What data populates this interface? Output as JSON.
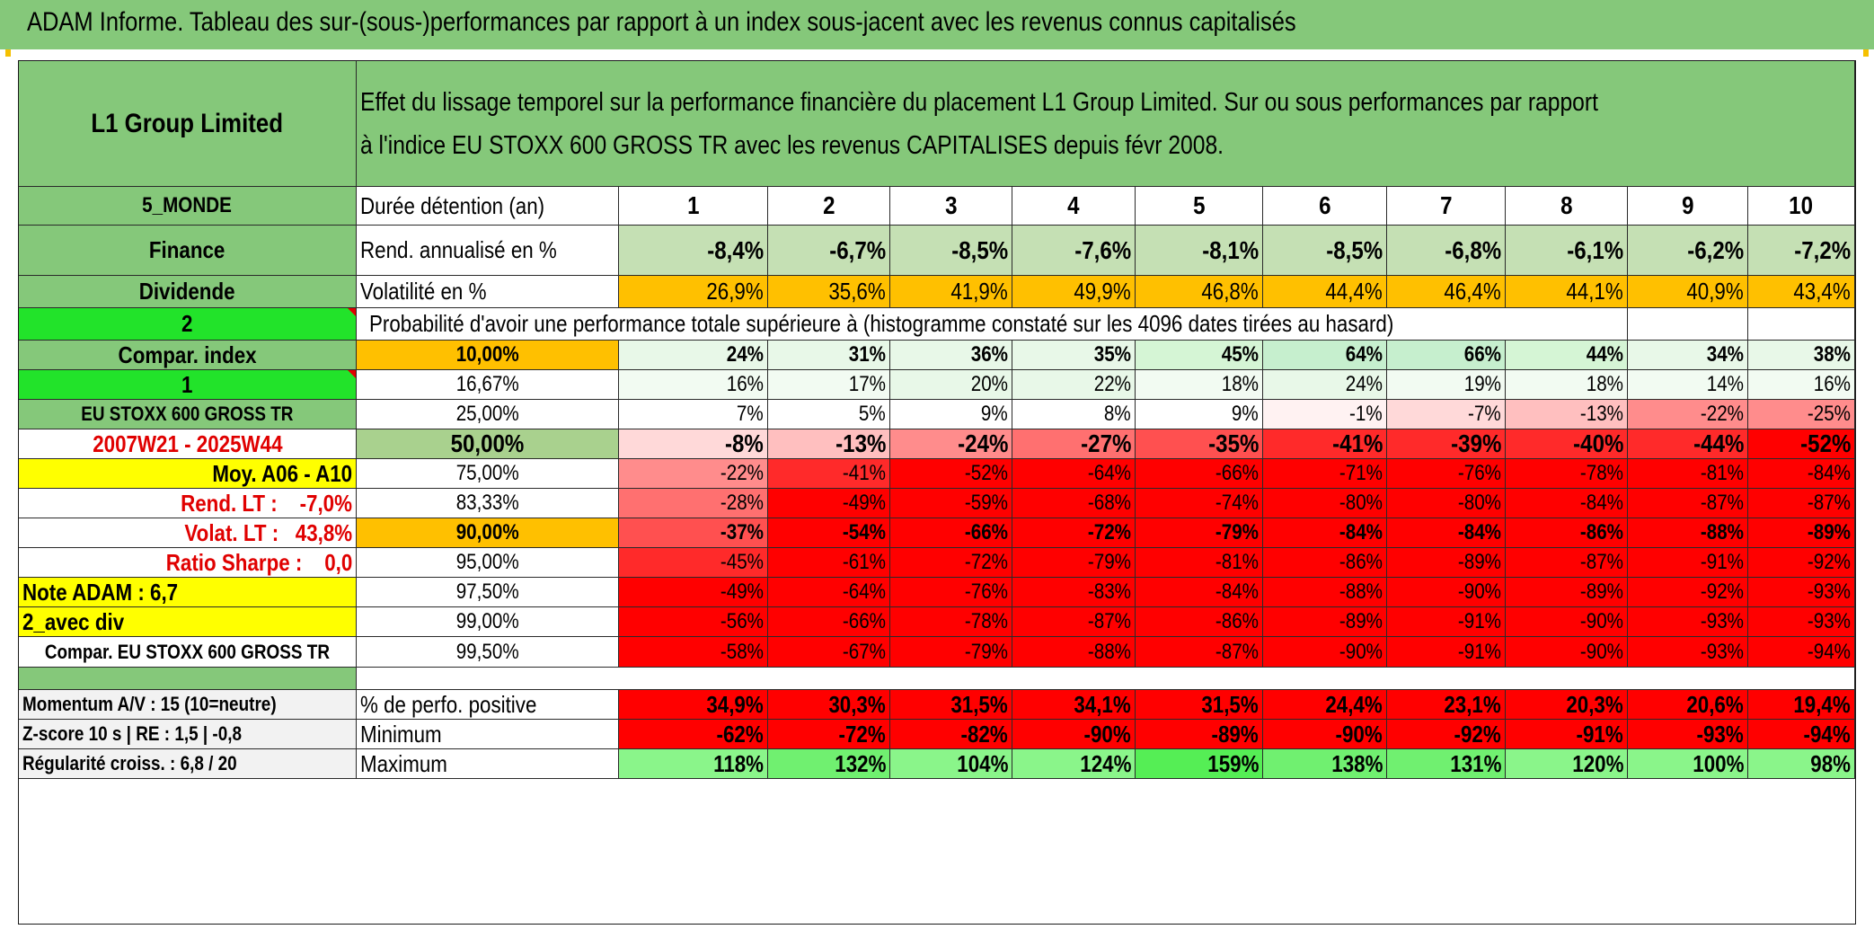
{
  "title": "ADAM Informe. Tableau des sur-(sous-)performances par rapport à un index sous-jacent avec les revenus connus capitalisés",
  "header": {
    "company": "L1 Group Limited",
    "description_line1": "Effet du lissage temporel sur la performance financière du placement L1 Group Limited. Sur ou sous performances par rapport",
    "description_line2": "à l'indice EU STOXX 600 GROSS TR avec les revenus CAPITALISES depuis févr 2008."
  },
  "left": {
    "region": "5_MONDE",
    "sector": "Finance",
    "dividend": "Dividende",
    "num2": "2",
    "compar_index": "Compar. index",
    "num1": "1",
    "index_name": "EU STOXX 600 GROSS TR",
    "period": "2007W21 - 2025W44",
    "moy": "Moy. A06 - A10",
    "rend_lt": "Rend. LT :    -7,0%",
    "volat_lt": "Volat. LT :   43,8%",
    "sharpe": "Ratio Sharpe :    0,0",
    "note": "Note ADAM : 6,7",
    "avec_div": "2_avec div",
    "compar_eu": "Compar. EU STOXX 600 GROSS TR",
    "momentum": "Momentum A/V : 15 (10=neutre)",
    "zscore": "Z-score 10 s | RE : 1,5 | -0,8",
    "regularite": "Régularité croiss. : 6,8 / 20"
  },
  "labels": {
    "duree": "Durée détention (an)",
    "rend": "Rend. annualisé en %",
    "volat": "Volatilité en %",
    "proba": "Probabilité d'avoir une performance totale supérieure à (histogramme constaté sur les 4096 dates tirées au hasard)",
    "perf_pos": "% de perfo. positive",
    "minimum": "Minimum",
    "maximum": "Maximum"
  },
  "years": [
    "1",
    "2",
    "3",
    "4",
    "5",
    "6",
    "7",
    "8",
    "9",
    "10"
  ],
  "rend": [
    "-8,4%",
    "-6,7%",
    "-8,5%",
    "-7,6%",
    "-8,1%",
    "-8,5%",
    "-6,8%",
    "-6,1%",
    "-6,2%",
    "-7,2%"
  ],
  "volat": [
    "26,9%",
    "35,6%",
    "41,9%",
    "49,9%",
    "46,8%",
    "44,4%",
    "46,4%",
    "44,1%",
    "40,9%",
    "43,4%"
  ],
  "prob_rows": [
    {
      "pct": "10,00%",
      "values": [
        "24%",
        "31%",
        "36%",
        "35%",
        "45%",
        "64%",
        "66%",
        "44%",
        "34%",
        "38%"
      ]
    },
    {
      "pct": "16,67%",
      "values": [
        "16%",
        "17%",
        "20%",
        "22%",
        "18%",
        "24%",
        "19%",
        "18%",
        "14%",
        "16%"
      ]
    },
    {
      "pct": "25,00%",
      "values": [
        "7%",
        "5%",
        "9%",
        "8%",
        "9%",
        "-1%",
        "-7%",
        "-13%",
        "-22%",
        "-25%"
      ]
    },
    {
      "pct": "50,00%",
      "values": [
        "-8%",
        "-13%",
        "-24%",
        "-27%",
        "-35%",
        "-41%",
        "-39%",
        "-40%",
        "-44%",
        "-52%"
      ]
    },
    {
      "pct": "75,00%",
      "values": [
        "-22%",
        "-41%",
        "-52%",
        "-64%",
        "-66%",
        "-71%",
        "-76%",
        "-78%",
        "-81%",
        "-84%"
      ]
    },
    {
      "pct": "83,33%",
      "values": [
        "-28%",
        "-49%",
        "-59%",
        "-68%",
        "-74%",
        "-80%",
        "-80%",
        "-84%",
        "-87%",
        "-87%"
      ]
    },
    {
      "pct": "90,00%",
      "values": [
        "-37%",
        "-54%",
        "-66%",
        "-72%",
        "-79%",
        "-84%",
        "-84%",
        "-86%",
        "-88%",
        "-89%"
      ]
    },
    {
      "pct": "95,00%",
      "values": [
        "-45%",
        "-61%",
        "-72%",
        "-79%",
        "-81%",
        "-86%",
        "-89%",
        "-87%",
        "-91%",
        "-92%"
      ]
    },
    {
      "pct": "97,50%",
      "values": [
        "-49%",
        "-64%",
        "-76%",
        "-83%",
        "-84%",
        "-88%",
        "-90%",
        "-89%",
        "-92%",
        "-93%"
      ]
    },
    {
      "pct": "99,00%",
      "values": [
        "-56%",
        "-66%",
        "-78%",
        "-87%",
        "-86%",
        "-89%",
        "-91%",
        "-90%",
        "-93%",
        "-93%"
      ]
    },
    {
      "pct": "99,50%",
      "values": [
        "-58%",
        "-67%",
        "-79%",
        "-88%",
        "-87%",
        "-90%",
        "-91%",
        "-90%",
        "-93%",
        "-94%"
      ]
    }
  ],
  "perf_pos": [
    "34,9%",
    "30,3%",
    "31,5%",
    "34,1%",
    "31,5%",
    "24,4%",
    "23,1%",
    "20,3%",
    "20,6%",
    "19,4%"
  ],
  "minimum": [
    "-62%",
    "-72%",
    "-82%",
    "-90%",
    "-89%",
    "-90%",
    "-92%",
    "-91%",
    "-93%",
    "-94%"
  ],
  "maximum": [
    "118%",
    "132%",
    "104%",
    "124%",
    "159%",
    "138%",
    "131%",
    "120%",
    "100%",
    "98%"
  ],
  "colors": {
    "header_green": "#85c87a",
    "bright_green": "#22e32a",
    "highlight_yellow": "#ffff00",
    "volatility_orange": "#ffc000",
    "loss_red": "#ff0000",
    "label_red": "#e00000"
  }
}
